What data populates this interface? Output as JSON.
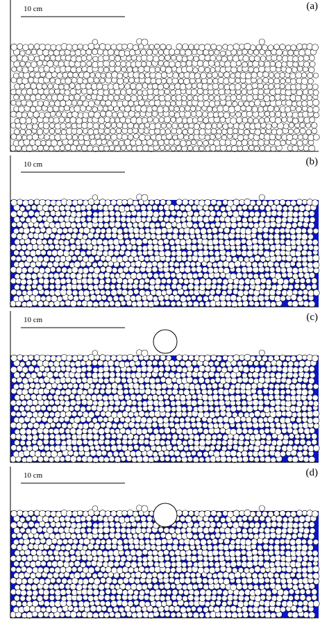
{
  "figure": {
    "panels": [
      {
        "id": "a",
        "label": "(a)",
        "scale_label": "10 cm",
        "water": false,
        "sphere": "none"
      },
      {
        "id": "b",
        "label": "(b)",
        "scale_label": "10 cm",
        "water": true,
        "sphere": "none"
      },
      {
        "id": "c",
        "label": "(c)",
        "scale_label": "10 cm",
        "water": true,
        "sphere": "above"
      },
      {
        "id": "d",
        "label": "(d)",
        "scale_label": "10 cm",
        "water": true,
        "sphere": "impact"
      }
    ],
    "colors": {
      "water": "#0a14c8",
      "grain_fill": "#ffffff",
      "grain_stroke": "#000000",
      "frame": "#000000"
    }
  }
}
